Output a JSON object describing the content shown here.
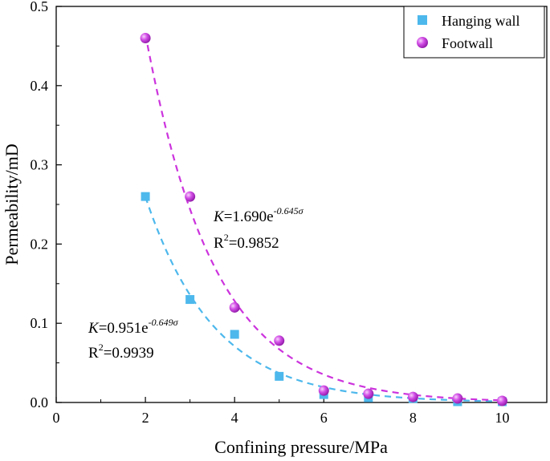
{
  "chart_data": {
    "type": "scatter",
    "title": "",
    "xlabel": "Confining pressure/MPa",
    "ylabel": "Permeability/mD",
    "xlim": [
      0,
      11
    ],
    "ylim": [
      0,
      0.5
    ],
    "xticks": [
      0,
      2,
      4,
      6,
      8,
      10
    ],
    "yticks": [
      0.0,
      0.1,
      0.2,
      0.3,
      0.4,
      0.5
    ],
    "xtick_labels": [
      "0",
      "2",
      "4",
      "6",
      "8",
      "10"
    ],
    "ytick_labels": [
      "0.0",
      "0.1",
      "0.2",
      "0.3",
      "0.4",
      "0.5"
    ],
    "legend_position": "top-right",
    "series": [
      {
        "name": "Hanging wall",
        "marker": "square",
        "color": "#4DB8EC",
        "x": [
          2,
          3,
          4,
          5,
          6,
          7,
          8,
          9,
          10
        ],
        "y": [
          0.26,
          0.13,
          0.086,
          0.033,
          0.01,
          0.006,
          0.005,
          0.001,
          0.001
        ],
        "fit": {
          "a": 0.951,
          "b": 0.649,
          "x_from": 2,
          "x_to": 10,
          "eq_main": "K",
          "eq_rest": "=0.951e",
          "eq_exp": "-0.649σ",
          "r2_prefix": "R",
          "r2_sup": "2",
          "r2_value": "=0.9939"
        }
      },
      {
        "name": "Footwall",
        "marker": "sphere",
        "color": "#CC33DD",
        "x": [
          2,
          3,
          4,
          5,
          6,
          7,
          8,
          9,
          10
        ],
        "y": [
          0.46,
          0.26,
          0.12,
          0.078,
          0.015,
          0.011,
          0.007,
          0.005,
          0.002
        ],
        "fit": {
          "a": 1.69,
          "b": 0.645,
          "x_from": 2,
          "x_to": 10,
          "eq_main": "K",
          "eq_rest": "=1.690e",
          "eq_exp": "-0.645σ",
          "r2_prefix": "R",
          "r2_sup": "2",
          "r2_value": "=0.9852"
        }
      }
    ]
  }
}
